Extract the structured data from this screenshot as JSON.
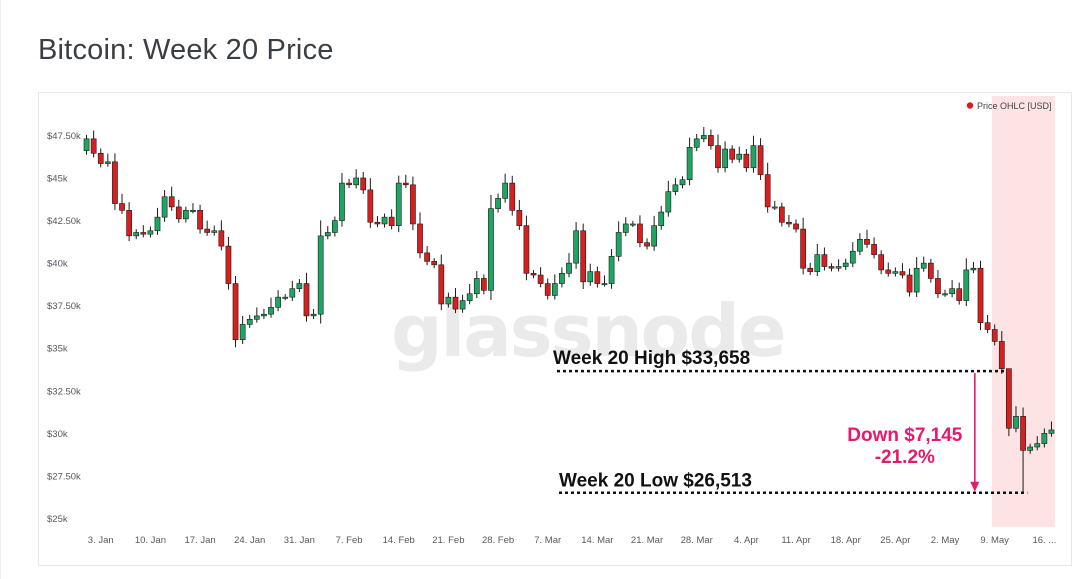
{
  "page": {
    "title": "Bitcoin: Week 20 Price"
  },
  "watermark": "glassnode",
  "chart_data": {
    "type": "candlestick",
    "title": "Bitcoin: Week 20 Price",
    "legend": [
      {
        "label": "Price OHLC [USD]",
        "color": "#e01a1a",
        "position": "top-right"
      }
    ],
    "y_ticks": [
      {
        "value": 25000,
        "label": "$25k"
      },
      {
        "value": 27500,
        "label": "$27.50k"
      },
      {
        "value": 30000,
        "label": "$30k"
      },
      {
        "value": 32500,
        "label": "$32.50k"
      },
      {
        "value": 35000,
        "label": "$35k"
      },
      {
        "value": 37500,
        "label": "$37.50k"
      },
      {
        "value": 40000,
        "label": "$40k"
      },
      {
        "value": 42500,
        "label": "$42.50k"
      },
      {
        "value": 45000,
        "label": "$45k"
      },
      {
        "value": 47500,
        "label": "$47.50k"
      }
    ],
    "ylim": [
      24500,
      48700
    ],
    "x_ticks": [
      {
        "day": 2,
        "label": "3. Jan"
      },
      {
        "day": 9,
        "label": "10. Jan"
      },
      {
        "day": 16,
        "label": "17. Jan"
      },
      {
        "day": 23,
        "label": "24. Jan"
      },
      {
        "day": 30,
        "label": "31. Jan"
      },
      {
        "day": 37,
        "label": "7. Feb"
      },
      {
        "day": 44,
        "label": "14. Feb"
      },
      {
        "day": 51,
        "label": "21. Feb"
      },
      {
        "day": 58,
        "label": "28. Feb"
      },
      {
        "day": 65,
        "label": "7. Mar"
      },
      {
        "day": 72,
        "label": "14. Mar"
      },
      {
        "day": 79,
        "label": "21. Mar"
      },
      {
        "day": 86,
        "label": "28. Mar"
      },
      {
        "day": 93,
        "label": "4. Apr"
      },
      {
        "day": 100,
        "label": "11. Apr"
      },
      {
        "day": 107,
        "label": "18. Apr"
      },
      {
        "day": 114,
        "label": "25. Apr"
      },
      {
        "day": 121,
        "label": "2. May"
      },
      {
        "day": 128,
        "label": "9. May"
      },
      {
        "day": 135,
        "label": "16. ..."
      }
    ],
    "xlim": [
      -0.5,
      136.5
    ],
    "highlight": {
      "from_day": 127.6,
      "to_day": 136.5,
      "color": "#fde3e3",
      "label": "Week 20"
    },
    "closes": [
      47300,
      46450,
      45850,
      45950,
      43500,
      43100,
      41600,
      41800,
      41700,
      41900,
      42700,
      43900,
      43300,
      42600,
      43100,
      43100,
      42000,
      41800,
      41900,
      41000,
      38800,
      35500,
      36400,
      36700,
      36900,
      37000,
      37400,
      38000,
      38000,
      38500,
      38800,
      36900,
      37000,
      41600,
      41800,
      42500,
      44700,
      44600,
      45000,
      44300,
      42400,
      42300,
      42700,
      42200,
      44700,
      44600,
      42300,
      40600,
      40100,
      39900,
      37600,
      38000,
      37300,
      37800,
      38200,
      39100,
      38400,
      43200,
      43800,
      44700,
      43100,
      42200,
      39400,
      39300,
      38800,
      38100,
      38800,
      39400,
      40000,
      41900,
      38900,
      39500,
      38800,
      38800,
      40400,
      41800,
      42300,
      42300,
      41200,
      41000,
      42200,
      43000,
      44200,
      44600,
      44900,
      46800,
      47300,
      47500,
      46900,
      45600,
      46700,
      46100,
      46400,
      45600,
      46900,
      45200,
      43300,
      43300,
      42400,
      42300,
      42000,
      39700,
      39500,
      40500,
      39800,
      39700,
      39800,
      40000,
      40700,
      41400,
      41100,
      40500,
      39600,
      39400,
      39500,
      39300,
      38300,
      39700,
      40000,
      39100,
      38200,
      38200,
      38500,
      37800,
      39600,
      39700,
      36500,
      36100,
      35400,
      33800,
      30300,
      31000,
      29000,
      29200,
      29400,
      30000,
      30200
    ],
    "annotations": {
      "week20_high": {
        "value": 33658,
        "label": "Week 20 High $33,658"
      },
      "week20_low": {
        "value": 26513,
        "label": "Week 20 Low $26,513"
      },
      "drop": {
        "line1": "Down $7,145",
        "line2": "-21.2%"
      }
    }
  }
}
